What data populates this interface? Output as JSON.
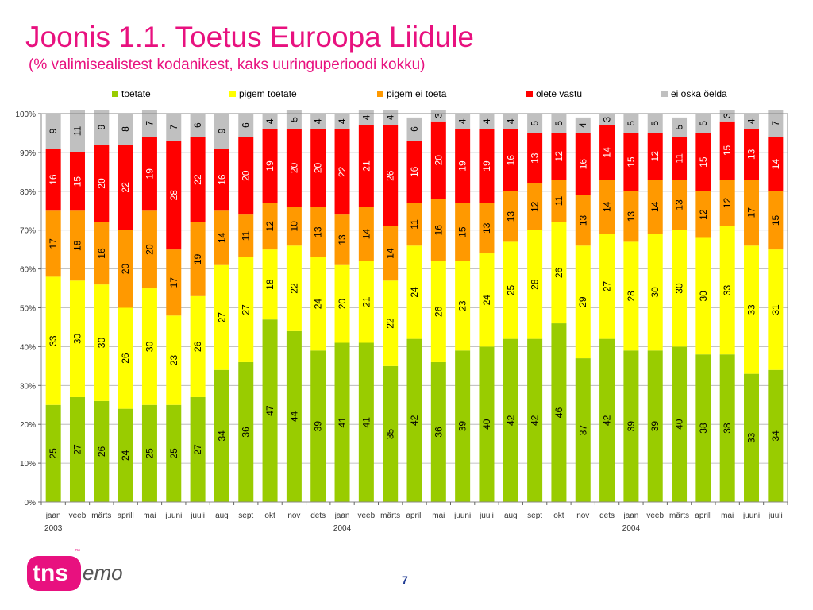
{
  "title": "Joonis 1.1. Toetus Euroopa Liidule",
  "subtitle": "(% valimisealistest kodanikest, kaks uuringuperioodi kokku)",
  "page_number": "7",
  "logo": {
    "left": "tns",
    "right": "emor",
    "tm": "™"
  },
  "chart_data": {
    "type": "bar",
    "stacked": true,
    "ylim": [
      0,
      100
    ],
    "y_ticks": [
      "0%",
      "10%",
      "20%",
      "30%",
      "40%",
      "50%",
      "60%",
      "70%",
      "80%",
      "90%",
      "100%"
    ],
    "grid": true,
    "legend": "top",
    "categories": [
      "jaan",
      "veeb",
      "märts",
      "aprill",
      "mai",
      "juuni",
      "juuli",
      "aug",
      "sept",
      "okt",
      "nov",
      "dets",
      "jaan",
      "veeb",
      "märts",
      "aprill",
      "mai",
      "juuni",
      "juuli",
      "aug",
      "sept",
      "okt",
      "nov",
      "dets",
      "jaan",
      "veeb",
      "märts",
      "aprill",
      "mai",
      "juuni",
      "juuli"
    ],
    "year_labels": [
      {
        "index": 0,
        "label": "2003"
      },
      {
        "index": 12,
        "label": "2004"
      },
      {
        "index": 24,
        "label": "2004"
      }
    ],
    "series": [
      {
        "name": "toetate",
        "color": "#99cc00",
        "values": [
          25,
          27,
          26,
          24,
          25,
          25,
          27,
          34,
          36,
          47,
          44,
          39,
          41,
          41,
          35,
          42,
          36,
          39,
          40,
          42,
          42,
          46,
          37,
          42,
          39,
          39,
          40,
          38,
          38,
          33,
          34
        ]
      },
      {
        "name": "pigem toetate",
        "color": "#ffff00",
        "values": [
          33,
          30,
          30,
          26,
          30,
          23,
          26,
          27,
          27,
          18,
          22,
          24,
          20,
          21,
          22,
          24,
          26,
          23,
          24,
          25,
          28,
          26,
          29,
          27,
          28,
          30,
          30,
          30,
          33,
          33,
          31
        ]
      },
      {
        "name": "pigem ei toeta",
        "color": "#ff9900",
        "values": [
          17,
          18,
          16,
          20,
          20,
          17,
          19,
          14,
          11,
          12,
          10,
          13,
          13,
          14,
          14,
          11,
          16,
          15,
          13,
          13,
          12,
          11,
          13,
          14,
          13,
          14,
          13,
          12,
          12,
          17,
          15
        ]
      },
      {
        "name": "olete vastu",
        "color": "#ff0000",
        "values": [
          16,
          15,
          20,
          22,
          19,
          28,
          22,
          16,
          20,
          19,
          20,
          20,
          22,
          21,
          26,
          16,
          20,
          19,
          19,
          16,
          13,
          12,
          16,
          14,
          15,
          12,
          11,
          15,
          15,
          13,
          14
        ]
      },
      {
        "name": "ei oska öelda",
        "color": "#c0c0c0",
        "values": [
          9,
          11,
          9,
          8,
          7,
          7,
          6,
          9,
          6,
          4,
          5,
          4,
          4,
          4,
          4,
          6,
          3,
          4,
          4,
          4,
          5,
          5,
          4,
          3,
          5,
          5,
          5,
          5,
          3,
          4,
          7
        ]
      }
    ]
  }
}
